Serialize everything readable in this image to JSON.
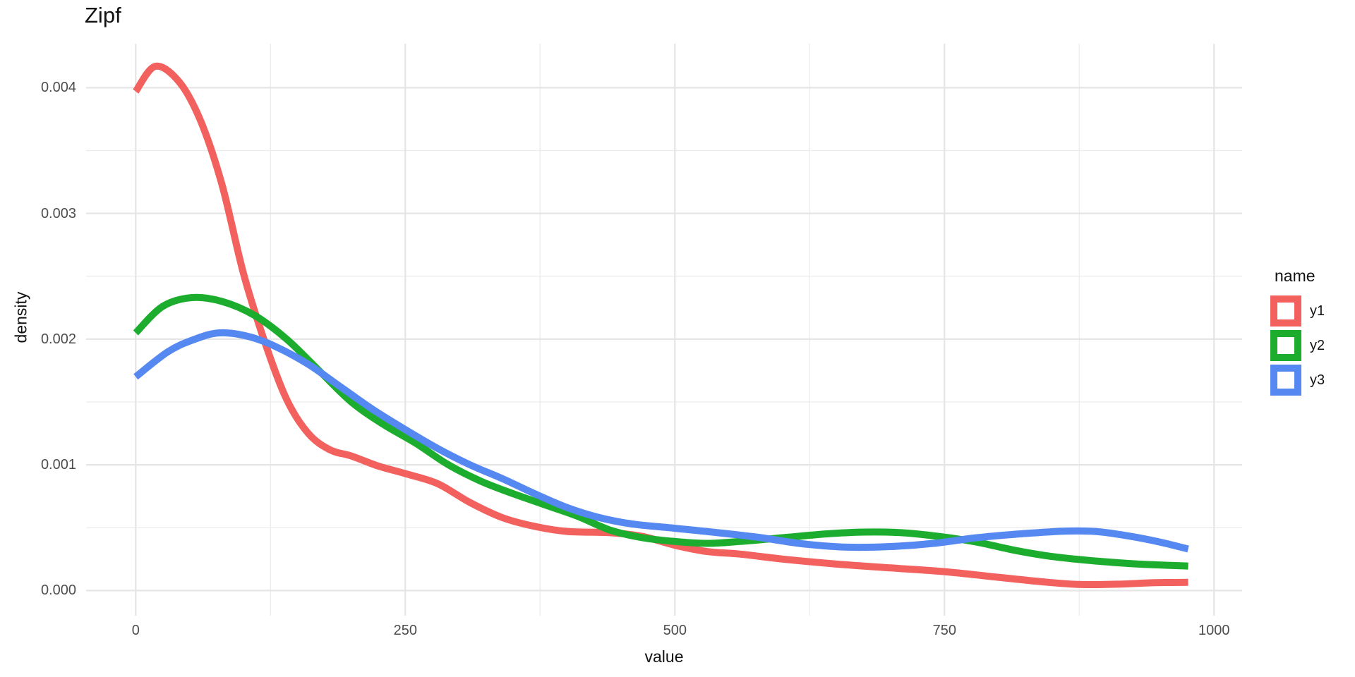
{
  "chart_data": {
    "type": "line",
    "title": "Zipf",
    "xlabel": "value",
    "ylabel": "density",
    "legend_title": "name",
    "legend_position": "right",
    "grid": true,
    "xlim": [
      -46,
      1026
    ],
    "ylim": [
      -0.0002,
      0.00435
    ],
    "x_tick_values": [
      0,
      250,
      500,
      750,
      1000
    ],
    "x_tick_labels": [
      "0",
      "250",
      "500",
      "750",
      "1000"
    ],
    "x_minor_values": [
      125,
      375,
      625,
      875
    ],
    "y_tick_values": [
      0,
      0.001,
      0.002,
      0.003,
      0.004
    ],
    "y_tick_labels": [
      "0.000",
      "0.001",
      "0.002",
      "0.003",
      "0.004"
    ],
    "y_minor_values": [
      0.0005,
      0.0015,
      0.0025,
      0.0035
    ],
    "series": [
      {
        "name": "y1",
        "color": "#F2615E",
        "points": [
          [
            0,
            0.00397
          ],
          [
            18,
            0.00417
          ],
          [
            40,
            0.00405
          ],
          [
            60,
            0.00374
          ],
          [
            80,
            0.00323
          ],
          [
            100,
            0.00252
          ],
          [
            120,
            0.00197
          ],
          [
            140,
            0.00152
          ],
          [
            160,
            0.00125
          ],
          [
            180,
            0.00112
          ],
          [
            200,
            0.00107
          ],
          [
            225,
            0.00099
          ],
          [
            250,
            0.00093
          ],
          [
            280,
            0.00085
          ],
          [
            310,
            0.0007
          ],
          [
            340,
            0.00058
          ],
          [
            370,
            0.00051
          ],
          [
            400,
            0.00047
          ],
          [
            440,
            0.00046
          ],
          [
            470,
            0.00043
          ],
          [
            500,
            0.00036
          ],
          [
            530,
            0.00031
          ],
          [
            560,
            0.00029
          ],
          [
            600,
            0.00025
          ],
          [
            650,
            0.00021
          ],
          [
            700,
            0.00018
          ],
          [
            750,
            0.00015
          ],
          [
            800,
            0.000105
          ],
          [
            840,
            7e-05
          ],
          [
            875,
            4.8e-05
          ],
          [
            910,
            5e-05
          ],
          [
            945,
            6.2e-05
          ],
          [
            976,
            6.5e-05
          ]
        ]
      },
      {
        "name": "y2",
        "color": "#1DAD2E",
        "points": [
          [
            0,
            0.00205
          ],
          [
            25,
            0.00226
          ],
          [
            52,
            0.00233
          ],
          [
            80,
            0.0023
          ],
          [
            110,
            0.00219
          ],
          [
            140,
            0.002
          ],
          [
            170,
            0.00175
          ],
          [
            200,
            0.0015
          ],
          [
            230,
            0.00132
          ],
          [
            260,
            0.00117
          ],
          [
            290,
            0.001
          ],
          [
            320,
            0.00087
          ],
          [
            350,
            0.00077
          ],
          [
            380,
            0.00068
          ],
          [
            410,
            0.00059
          ],
          [
            440,
            0.00048
          ],
          [
            470,
            0.00042
          ],
          [
            500,
            0.00039
          ],
          [
            530,
            0.000375
          ],
          [
            560,
            0.00039
          ],
          [
            600,
            0.00042
          ],
          [
            640,
            0.00045
          ],
          [
            675,
            0.000465
          ],
          [
            710,
            0.00046
          ],
          [
            745,
            0.00043
          ],
          [
            780,
            0.000385
          ],
          [
            815,
            0.00032
          ],
          [
            850,
            0.00027
          ],
          [
            890,
            0.000235
          ],
          [
            930,
            0.00021
          ],
          [
            976,
            0.000195
          ]
        ]
      },
      {
        "name": "y3",
        "color": "#5588F0",
        "points": [
          [
            0,
            0.0017
          ],
          [
            30,
            0.0019
          ],
          [
            55,
            0.002
          ],
          [
            78,
            0.00205
          ],
          [
            105,
            0.00202
          ],
          [
            130,
            0.00194
          ],
          [
            160,
            0.0018
          ],
          [
            190,
            0.00162
          ],
          [
            220,
            0.00144
          ],
          [
            250,
            0.00128
          ],
          [
            280,
            0.00113
          ],
          [
            310,
            0.001
          ],
          [
            340,
            0.00089
          ],
          [
            370,
            0.00077
          ],
          [
            400,
            0.00066
          ],
          [
            430,
            0.00058
          ],
          [
            460,
            0.00053
          ],
          [
            500,
            0.000495
          ],
          [
            540,
            0.00046
          ],
          [
            580,
            0.00042
          ],
          [
            620,
            0.00037
          ],
          [
            660,
            0.000345
          ],
          [
            700,
            0.00035
          ],
          [
            740,
            0.000375
          ],
          [
            780,
            0.00042
          ],
          [
            820,
            0.00045
          ],
          [
            860,
            0.000472
          ],
          [
            890,
            0.00047
          ],
          [
            920,
            0.000435
          ],
          [
            950,
            0.000385
          ],
          [
            976,
            0.00033
          ]
        ]
      }
    ]
  }
}
